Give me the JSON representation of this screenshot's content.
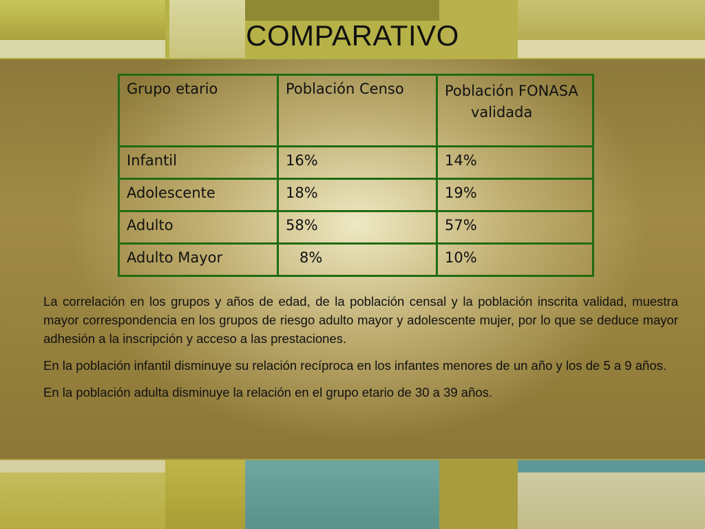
{
  "slide": {
    "title": "COMPARATIVO",
    "table": {
      "headers": [
        "Grupo etario",
        "Población Censo",
        "Población FONASA validada"
      ],
      "rows": [
        [
          "Infantil",
          "16%",
          "14%"
        ],
        [
          "Adolescente",
          "18%",
          "19%"
        ],
        [
          "Adulto",
          "58%",
          "57%"
        ],
        [
          "Adulto Mayor",
          "8%",
          "10%"
        ]
      ]
    },
    "paragraphs": [
      "La correlación en los grupos y años de edad, de la población censal y la población inscrita validad, muestra mayor correspondencia en los grupos de riesgo adulto mayor y adolescente mujer, por lo que se deduce mayor adhesión a la inscripción y acceso a las prestaciones.",
      "En la población infantil disminuye su relación recíproca en los infantes menores de un año y los de 5 a 9 años.",
      "En la población adulta disminuye la relación en el grupo etario de 30 a 39 años."
    ]
  },
  "colors": {
    "table_border": "#1f6b12",
    "text": "#111111"
  }
}
